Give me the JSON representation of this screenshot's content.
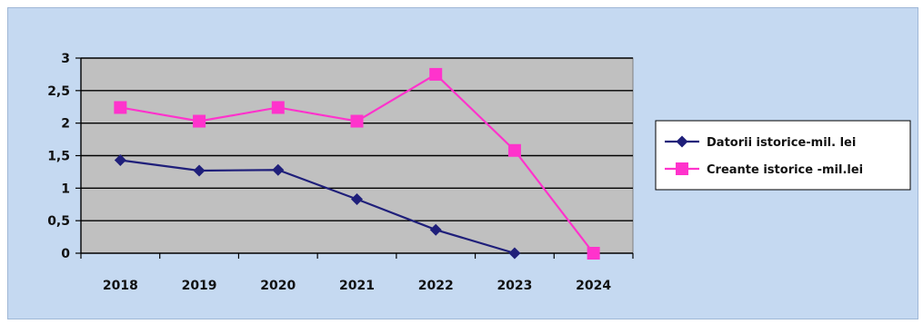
{
  "chart_data": {
    "type": "line",
    "categories": [
      "2018",
      "2019",
      "2020",
      "2021",
      "2022",
      "2023",
      "2024"
    ],
    "series": [
      {
        "name": "Datorii istorice-mil. lei",
        "values": [
          1.43,
          1.27,
          1.28,
          0.83,
          0.36,
          0,
          null
        ],
        "color": "#1f1f7a",
        "marker": "diamond"
      },
      {
        "name": "Creante istorice -mil.lei",
        "values": [
          2.24,
          2.03,
          2.24,
          2.03,
          2.75,
          1.58,
          0
        ],
        "color": "#ff33cc",
        "marker": "square"
      }
    ],
    "yticks": [
      "0",
      "0,5",
      "1",
      "1,5",
      "2",
      "2,5",
      "3"
    ],
    "ylim": [
      0,
      3
    ],
    "grid": true,
    "legend": "right",
    "title": "",
    "xlabel": "",
    "ylabel": ""
  }
}
